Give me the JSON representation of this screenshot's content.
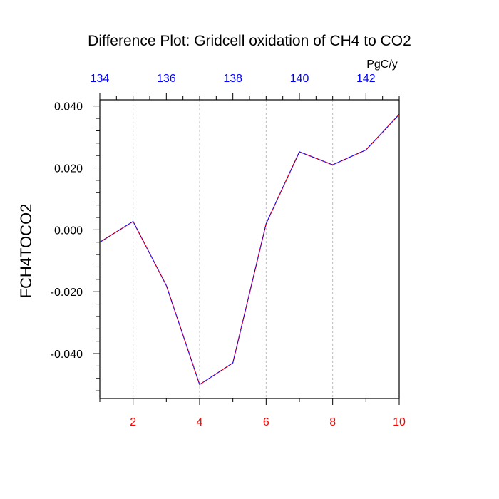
{
  "chart_data": {
    "type": "line",
    "title": "Difference Plot: Gridcell oxidation of CH4 to CO2",
    "ylabel": "FCH4TOCO2",
    "xlabel": "",
    "top_axis_units": "PgC/y",
    "x": [
      1,
      2,
      3,
      4,
      5,
      6,
      7,
      8,
      9,
      10
    ],
    "series": [
      {
        "values": [
          -0.004,
          0.0027,
          -0.018,
          -0.05,
          -0.043,
          0.002,
          0.0252,
          0.021,
          0.0258,
          0.0373
        ]
      }
    ],
    "xlim": [
      1,
      10
    ],
    "ylim": [
      -0.0545,
      0.042
    ],
    "bottom_ticks": [
      {
        "value": 2,
        "label": "2"
      },
      {
        "value": 4,
        "label": "4"
      },
      {
        "value": 6,
        "label": "6"
      },
      {
        "value": 8,
        "label": "8"
      },
      {
        "value": 10,
        "label": "10"
      }
    ],
    "top_ticks": [
      {
        "value": 134,
        "label": "134"
      },
      {
        "value": 136,
        "label": "136"
      },
      {
        "value": 138,
        "label": "138"
      },
      {
        "value": 140,
        "label": "140"
      },
      {
        "value": 142,
        "label": "142"
      }
    ],
    "top_axis_range": [
      134,
      143
    ],
    "y_ticks": [
      {
        "value": 0.04,
        "label": "0.040"
      },
      {
        "value": 0.02,
        "label": "0.020"
      },
      {
        "value": 0.0,
        "label": "0.000"
      },
      {
        "value": -0.02,
        "label": "-0.020"
      },
      {
        "value": -0.04,
        "label": "-0.040"
      }
    ],
    "y_minor_step": 0.004,
    "grid": "vertical dashed at bottom major ticks",
    "colors": {
      "line_a": "#0000ff",
      "line_b": "#ff0000",
      "bottom_tick_labels": "#ff0000",
      "top_tick_labels": "#0000ff",
      "grid": "#bbbbbb",
      "axis": "#000000"
    }
  }
}
